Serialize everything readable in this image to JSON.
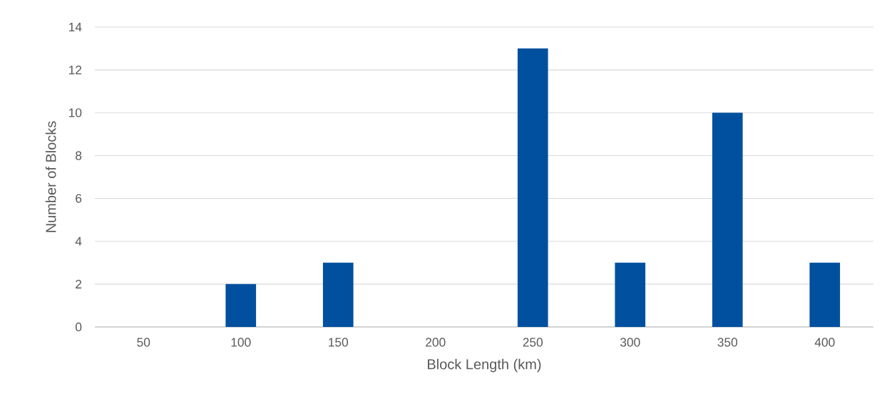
{
  "chart_data": {
    "type": "bar",
    "xlabel": "Block Length (km)",
    "ylabel": "Number of Blocks",
    "categories": [
      "50",
      "100",
      "150",
      "200",
      "250",
      "300",
      "350",
      "400"
    ],
    "values": [
      0,
      2,
      3,
      0,
      13,
      3,
      10,
      3
    ],
    "color": "#00509f",
    "ylim": [
      0,
      14
    ],
    "yticks": [
      0,
      2,
      4,
      6,
      8,
      10,
      12,
      14
    ],
    "grid": "y"
  }
}
